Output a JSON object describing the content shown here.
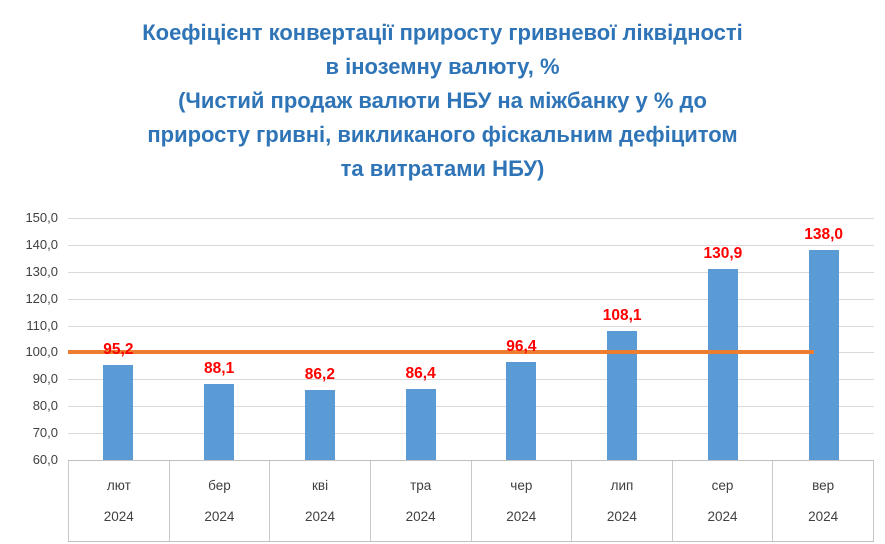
{
  "chart_data": {
    "type": "bar",
    "title_lines": [
      "Коефіцієнт конвертації приросту гривневої ліквідності",
      "в іноземну валюту, %",
      "(Чистий продаж валюти НБУ на міжбанку у % до",
      "приросту гривні, викликаного фіскальним дефіцитом",
      "та витратами НБУ)"
    ],
    "categories_month": [
      "лют",
      "бер",
      "кві",
      "тра",
      "чер",
      "лип",
      "сер",
      "вер"
    ],
    "categories_year": [
      "2024",
      "2024",
      "2024",
      "2024",
      "2024",
      "2024",
      "2024",
      "2024"
    ],
    "values": [
      95.2,
      88.1,
      86.2,
      86.4,
      96.4,
      108.1,
      130.9,
      138.0
    ],
    "value_labels": [
      "95,2",
      "88,1",
      "86,2",
      "86,4",
      "96,4",
      "108,1",
      "130,9",
      "138,0"
    ],
    "y_tick_values": [
      150,
      140,
      130,
      120,
      110,
      100,
      90,
      80,
      70,
      60
    ],
    "y_tick_labels": [
      "150,0",
      "140,0",
      "130,0",
      "120,0",
      "110,0",
      "100,0",
      "90,0",
      "80,0",
      "70,0",
      "60,0"
    ],
    "ylim": [
      60,
      150
    ],
    "reference_line": {
      "value": 100,
      "color": "#ED7D31"
    },
    "grid": true,
    "legend": "none",
    "colors": {
      "bar": "#5B9BD5",
      "data_label": "#FF0000",
      "title": "#2E74B6",
      "gridline": "#D9D9D9",
      "axis_text": "#404040"
    }
  }
}
